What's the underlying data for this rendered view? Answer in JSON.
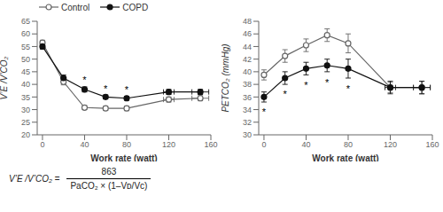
{
  "chart_data": [
    {
      "type": "line",
      "xlabel": "Work rate (watt)",
      "ylabel": "V’E /V’CO₂",
      "xlim": [
        -5,
        160
      ],
      "xticks": [
        0,
        40,
        80,
        120,
        160
      ],
      "ylim": [
        20,
        65
      ],
      "yticks": [
        20,
        25,
        30,
        35,
        40,
        45,
        50,
        55,
        60,
        65
      ],
      "grid": false,
      "legend": "upper left",
      "series": [
        {
          "name": "Control",
          "color": "#666666",
          "marker": "open_circle",
          "line_style": "solid",
          "x": [
            0,
            20,
            40,
            60,
            80,
            120,
            150
          ],
          "values": [
            56.5,
            41.0,
            30.8,
            30.5,
            30.5,
            34.0,
            34.5
          ],
          "errors": [
            1.0,
            1.2,
            0.8,
            0.8,
            0.9,
            1.0,
            1.0
          ],
          "x_errors": [
            0,
            0,
            0,
            0,
            0,
            5,
            8
          ]
        },
        {
          "name": "COPD",
          "color": "#111111",
          "marker": "circle",
          "line_style": "solid",
          "x": [
            0,
            20,
            40,
            60,
            80,
            120,
            150
          ],
          "values": [
            55.0,
            42.5,
            38.0,
            35.0,
            34.5,
            37.0,
            37.0
          ],
          "errors": [
            1.0,
            1.2,
            1.0,
            0.8,
            0.8,
            1.0,
            1.0
          ],
          "x_errors": [
            0,
            0,
            0,
            0,
            0,
            5,
            8
          ]
        }
      ],
      "annotations": [
        {
          "x": 40,
          "y": 40.5,
          "text": "*"
        },
        {
          "x": 60,
          "y": 37.0,
          "text": "*"
        },
        {
          "x": 80,
          "y": 36.5,
          "text": "*"
        }
      ],
      "formula": {
        "left": "V’E /V’CO₂ =",
        "numerator": "863",
        "denominator": "PaCO₂ × (1–Vᴅ/Vᴄ)"
      }
    },
    {
      "type": "line",
      "xlabel": "Work rate (watt)",
      "ylabel": "PETCO₂ (mmHg)",
      "xlim": [
        -5,
        160
      ],
      "xticks": [
        0,
        40,
        80,
        120,
        160
      ],
      "ylim": [
        30,
        48
      ],
      "yticks": [
        30,
        32,
        34,
        36,
        38,
        40,
        42,
        44,
        46,
        48
      ],
      "grid": false,
      "series": [
        {
          "name": "Control",
          "color": "#666666",
          "marker": "open_circle",
          "line_style": "solid",
          "x": [
            0,
            20,
            40,
            60,
            80,
            120,
            150
          ],
          "values": [
            39.5,
            42.5,
            44.2,
            45.8,
            44.5,
            37.5,
            37.5
          ],
          "errors": [
            0.8,
            1.0,
            1.0,
            1.0,
            1.5,
            0.8,
            1.0
          ],
          "x_errors": [
            0,
            0,
            0,
            0,
            0,
            0,
            8
          ]
        },
        {
          "name": "COPD",
          "color": "#111111",
          "marker": "circle",
          "line_style": "solid",
          "x": [
            0,
            20,
            40,
            60,
            80,
            120,
            150
          ],
          "values": [
            36.0,
            39.0,
            40.5,
            41.0,
            40.5,
            37.5,
            37.5
          ],
          "errors": [
            0.8,
            1.0,
            1.0,
            1.0,
            1.5,
            1.0,
            1.0
          ],
          "x_errors": [
            0,
            0,
            0,
            0,
            0,
            5,
            8
          ]
        }
      ],
      "annotations": [
        {
          "x": 0,
          "y": 34.2,
          "text": "*"
        },
        {
          "x": 20,
          "y": 37.0,
          "text": "*"
        },
        {
          "x": 40,
          "y": 38.5,
          "text": "*"
        },
        {
          "x": 60,
          "y": 38.9,
          "text": "*"
        },
        {
          "x": 80,
          "y": 37.9,
          "text": "*"
        }
      ]
    }
  ]
}
